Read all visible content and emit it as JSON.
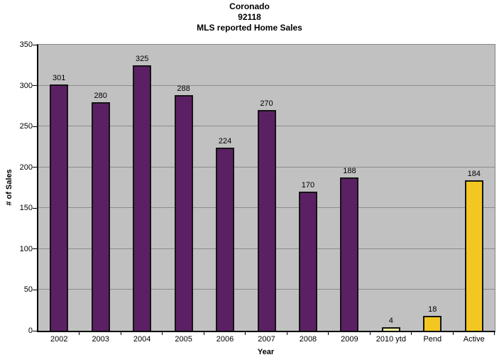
{
  "chart_data": {
    "type": "bar",
    "title_lines": [
      "Coronado",
      "92118",
      "MLS reported Home Sales"
    ],
    "xlabel": "Year",
    "ylabel": "# of Sales",
    "categories": [
      "2002",
      "2003",
      "2004",
      "2005",
      "2006",
      "2007",
      "2008",
      "2009",
      "2010 ytd",
      "Pend",
      "Active"
    ],
    "values": [
      301,
      280,
      325,
      288,
      224,
      270,
      170,
      188,
      4,
      18,
      184
    ],
    "bar_colors": [
      "#5B2063",
      "#5B2063",
      "#5B2063",
      "#5B2063",
      "#5B2063",
      "#5B2063",
      "#5B2063",
      "#5B2063",
      "#F0F0A0",
      "#F3C722",
      "#F3C722"
    ],
    "ylim": [
      0,
      350
    ],
    "ytick_step": 50,
    "ytick_labels": [
      "0",
      "50",
      "100",
      "150",
      "200",
      "250",
      "300",
      "350"
    ],
    "grid": "horizontal",
    "legend": "none",
    "colors": {
      "plot_background": "#C1C1C1",
      "gridline": "#8C8C8C",
      "axis": "#000000",
      "bar_border": "#141414",
      "plot_border": "#848484",
      "text": "#000000",
      "figure_background": "#FFFFFF"
    }
  }
}
